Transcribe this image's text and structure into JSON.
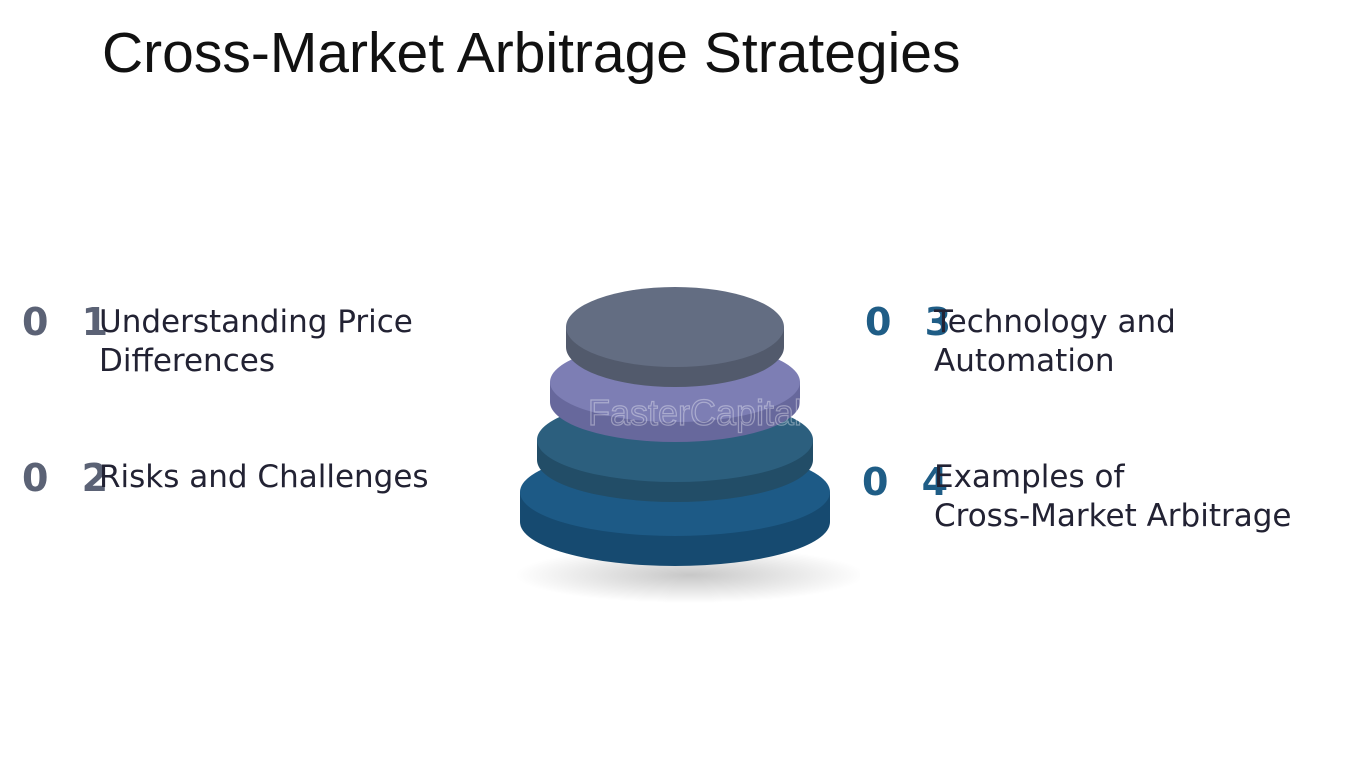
{
  "title": "Cross-Market Arbitrage Strategies",
  "items": [
    {
      "number": "0 1",
      "line1": "Understanding Price",
      "line2": "Differences",
      "color": "#5b6275"
    },
    {
      "number": "0 2",
      "line1": "Risks and Challenges",
      "line2": "",
      "color": "#5b6275"
    },
    {
      "number": "0 3",
      "line1": "Technology and",
      "line2": "Automation",
      "color": "#1f5d86"
    },
    {
      "number": "0 4",
      "line1": "Examples of",
      "line2": "Cross-Market Arbitrage",
      "color": "#1f5d86"
    }
  ],
  "watermark": "FasterCapital",
  "layers": [
    {
      "name": "layer-4",
      "top_color": "#1d5a86",
      "side_color": "#164a70"
    },
    {
      "name": "layer-3",
      "top_color": "#2c5f7e",
      "side_color": "#224d67"
    },
    {
      "name": "layer-2",
      "top_color": "#7d7eb4",
      "side_color": "#67689c"
    },
    {
      "name": "layer-1",
      "top_color": "#636d82",
      "side_color": "#525a6c"
    }
  ]
}
